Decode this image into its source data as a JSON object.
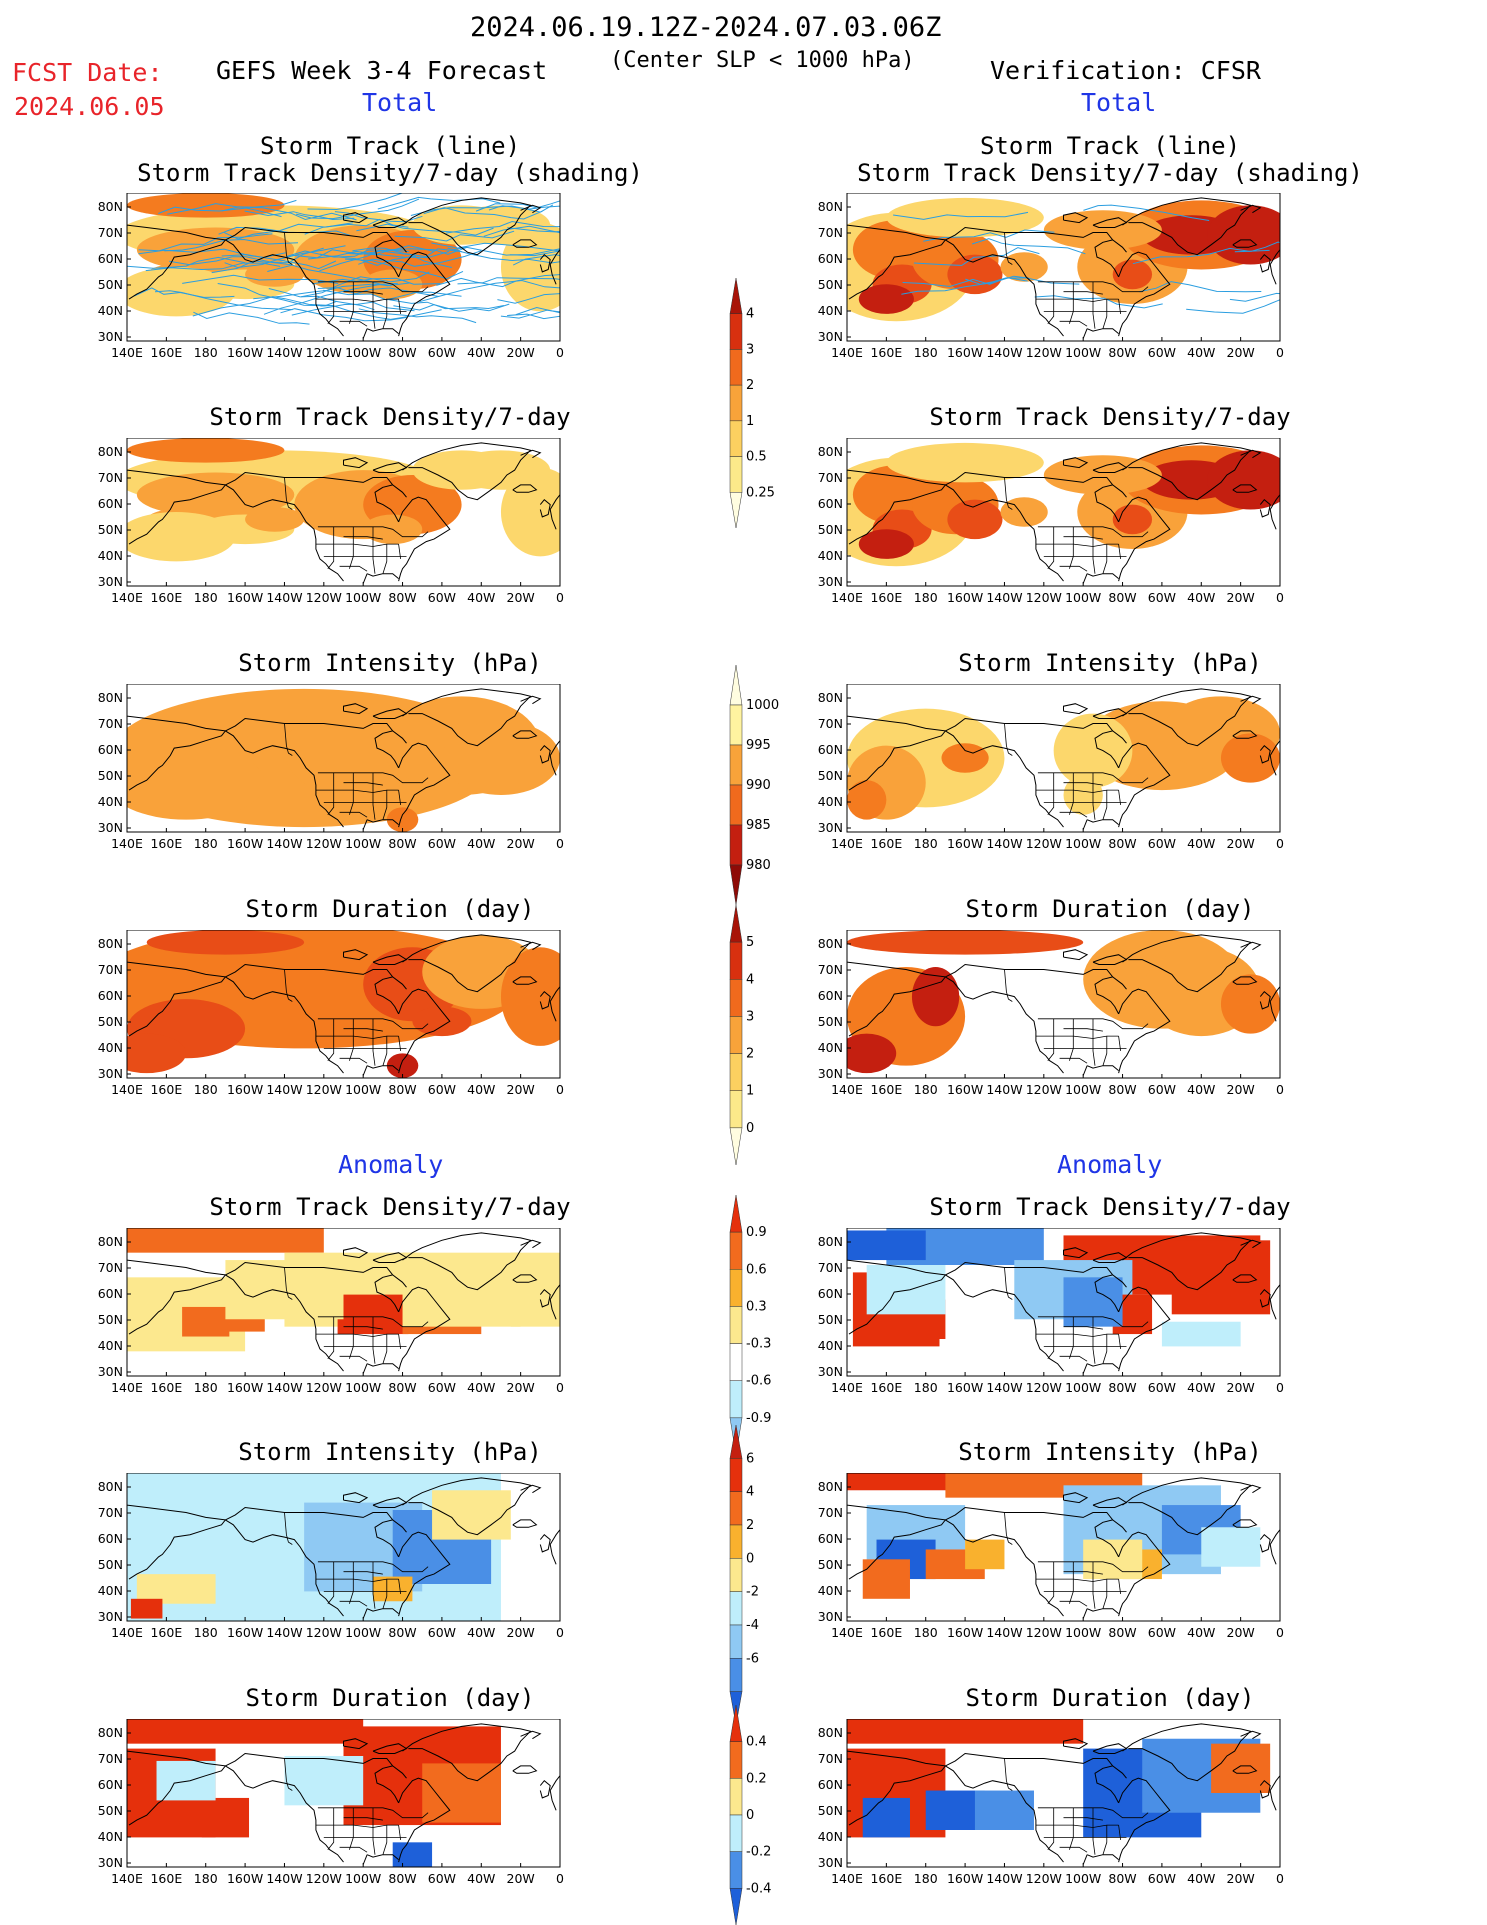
{
  "header": {
    "date_range": "2024.06.19.12Z-2024.07.03.06Z",
    "fcst_label": "FCST Date:",
    "fcst_date": "2024.06.05",
    "left_title": "GEFS Week 3-4 Forecast",
    "criterion": "(Center SLP < 1000 hPa)",
    "right_title": "Verification: CFSR",
    "section_total": "Total",
    "section_anomaly": "Anomaly"
  },
  "axes": {
    "lon_ticks": [
      "140E",
      "160E",
      "180",
      "160W",
      "140W",
      "120W",
      "100W",
      "80W",
      "60W",
      "40W",
      "20W",
      "0"
    ],
    "lat_ticks": [
      "80N",
      "70N",
      "60N",
      "50N",
      "40N",
      "30N"
    ]
  },
  "colorbars": {
    "density": [
      "4",
      "3",
      "2",
      "1",
      "0.5",
      "0.25"
    ],
    "intensity": [
      "1000",
      "995",
      "990",
      "985",
      "980"
    ],
    "duration": [
      "5",
      "4",
      "3",
      "2",
      "1",
      "0"
    ],
    "density_anom": [
      "0.9",
      "0.6",
      "0.3",
      "-0.3",
      "-0.6",
      "-0.9"
    ],
    "intensity_anom": [
      "6",
      "4",
      "2",
      "0",
      "-2",
      "-4",
      "-6"
    ],
    "duration_anom": [
      "0.4",
      "0.2",
      "0",
      "-0.2",
      "-0.4"
    ]
  },
  "colors": {
    "pos_scale": [
      "#fff7a8",
      "#fcd76c",
      "#f9a23a",
      "#f47b1f",
      "#e84d17",
      "#c41f10",
      "#8e0b07"
    ],
    "anom_pos": [
      "#fce88e",
      "#f9b12e",
      "#f26b1e",
      "#e5300c"
    ],
    "anom_neg": [
      "#bfeefb",
      "#8fc9f3",
      "#4a8fe6",
      "#1e60d9"
    ],
    "track_line": "#2b9ee0",
    "text_red": "#e8242a",
    "text_blue": "#1f35e6"
  },
  "chart_data": [
    {
      "type": "heatmap",
      "panel": "GEFS Week 3-4 Forecast - Total",
      "title_line1": "Storm Track (line)",
      "title_line2": "Storm Track Density/7-day (shading)",
      "region": "140E-0, 25N-85N",
      "shading_levels": [
        0.25,
        0.5,
        1,
        2,
        3,
        4
      ],
      "overlay": "storm track lines",
      "shading_scale": "density"
    },
    {
      "type": "heatmap",
      "panel": "Verification: CFSR - Total",
      "title_line1": "Storm Track (line)",
      "title_line2": "Storm Track Density/7-day (shading)",
      "region": "140E-0, 25N-85N",
      "shading_levels": [
        0.25,
        0.5,
        1,
        2,
        3,
        4
      ],
      "overlay": "storm track lines",
      "shading_scale": "density"
    },
    {
      "type": "heatmap",
      "panel": "GEFS Week 3-4 Forecast - Total",
      "title": "Storm Track Density/7-day",
      "levels": [
        0.25,
        0.5,
        1,
        2,
        3,
        4
      ],
      "shading_scale": "density"
    },
    {
      "type": "heatmap",
      "panel": "Verification: CFSR - Total",
      "title": "Storm Track Density/7-day",
      "levels": [
        0.25,
        0.5,
        1,
        2,
        3,
        4
      ],
      "shading_scale": "density"
    },
    {
      "type": "heatmap",
      "panel": "GEFS Week 3-4 Forecast - Total",
      "title": "Storm Intensity (hPa)",
      "levels": [
        1000,
        995,
        990,
        985,
        980
      ],
      "shading_scale": "intensity"
    },
    {
      "type": "heatmap",
      "panel": "Verification: CFSR - Total",
      "title": "Storm Intensity (hPa)",
      "levels": [
        1000,
        995,
        990,
        985,
        980
      ],
      "shading_scale": "intensity"
    },
    {
      "type": "heatmap",
      "panel": "GEFS Week 3-4 Forecast - Total",
      "title": "Storm Duration (day)",
      "levels": [
        0,
        1,
        2,
        3,
        4,
        5
      ],
      "shading_scale": "duration"
    },
    {
      "type": "heatmap",
      "panel": "Verification: CFSR - Total",
      "title": "Storm Duration (day)",
      "levels": [
        0,
        1,
        2,
        3,
        4,
        5
      ],
      "shading_scale": "duration"
    },
    {
      "type": "heatmap",
      "panel": "GEFS Week 3-4 Forecast - Anomaly",
      "title": "Storm Track Density/7-day",
      "levels": [
        -0.9,
        -0.6,
        -0.3,
        0.3,
        0.6,
        0.9
      ],
      "shading_scale": "density_anom"
    },
    {
      "type": "heatmap",
      "panel": "Verification: CFSR - Anomaly",
      "title": "Storm Track Density/7-day",
      "levels": [
        -0.9,
        -0.6,
        -0.3,
        0.3,
        0.6,
        0.9
      ],
      "shading_scale": "density_anom"
    },
    {
      "type": "heatmap",
      "panel": "GEFS Week 3-4 Forecast - Anomaly",
      "title": "Storm Intensity (hPa)",
      "levels": [
        -6,
        -4,
        -2,
        0,
        2,
        4,
        6
      ],
      "shading_scale": "intensity_anom"
    },
    {
      "type": "heatmap",
      "panel": "Verification: CFSR - Anomaly",
      "title": "Storm Intensity (hPa)",
      "levels": [
        -6,
        -4,
        -2,
        0,
        2,
        4,
        6
      ],
      "shading_scale": "intensity_anom"
    },
    {
      "type": "heatmap",
      "panel": "GEFS Week 3-4 Forecast - Anomaly",
      "title": "Storm Duration (day)",
      "levels": [
        -0.4,
        -0.2,
        0,
        0.2,
        0.4
      ],
      "shading_scale": "duration_anom"
    },
    {
      "type": "heatmap",
      "panel": "Verification: CFSR - Anomaly",
      "title": "Storm Duration (day)",
      "levels": [
        -0.4,
        -0.2,
        0,
        0.2,
        0.4
      ],
      "shading_scale": "duration_anom"
    }
  ]
}
